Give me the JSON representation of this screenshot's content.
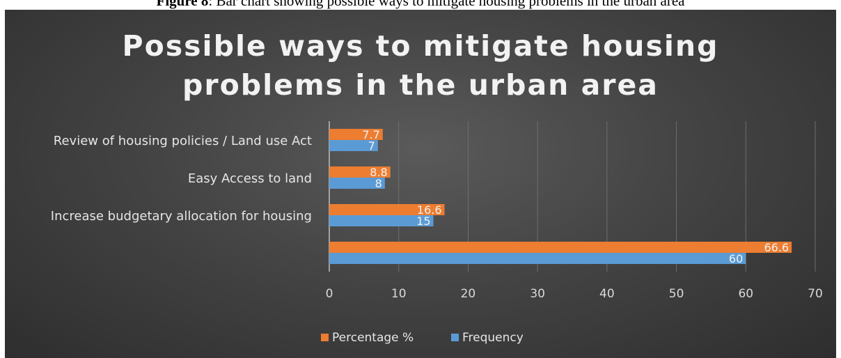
{
  "caption": {
    "prefix": "Figure 8",
    "text": ": Bar chart showing possible ways to mitigate housing problems in the urban area"
  },
  "chart_data": {
    "type": "bar",
    "orientation": "horizontal",
    "title": "Possible ways to mitigate housing problems in the urban area",
    "title_lines": [
      "Possible ways to mitigate housing",
      "problems in the urban area"
    ],
    "categories": [
      "Review of housing policies / Land use Act",
      "Easy Access to land",
      "Increase budgetary allocation for housing",
      ""
    ],
    "series": [
      {
        "name": "Percentage %",
        "values": [
          7.7,
          8.8,
          16.6,
          66.6
        ],
        "labels": [
          "7.7",
          "8.8",
          "16.6",
          "66.6"
        ],
        "color": "#ed7d31"
      },
      {
        "name": "Frequency",
        "values": [
          7,
          8,
          15,
          60
        ],
        "labels": [
          "7",
          "8",
          "15",
          "60"
        ],
        "color": "#5b9bd5"
      }
    ],
    "xlim": [
      0,
      70
    ],
    "xticks": [
      "0",
      "10",
      "20",
      "30",
      "40",
      "50",
      "60",
      "70"
    ],
    "grid": true,
    "legend_position": "bottom"
  }
}
